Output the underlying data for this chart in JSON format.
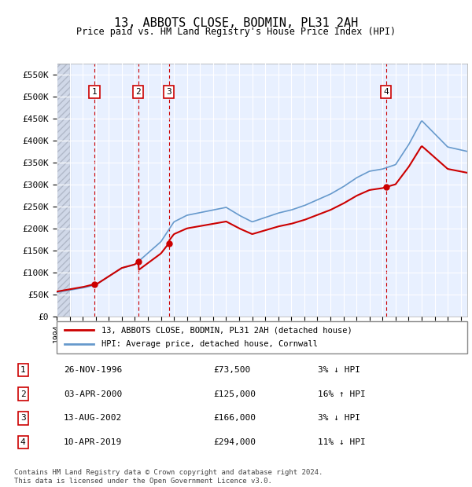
{
  "title": "13, ABBOTS CLOSE, BODMIN, PL31 2AH",
  "subtitle": "Price paid vs. HM Land Registry's House Price Index (HPI)",
  "ylabel": "",
  "ylim": [
    0,
    575000
  ],
  "yticks": [
    0,
    50000,
    100000,
    150000,
    200000,
    250000,
    300000,
    350000,
    400000,
    450000,
    500000,
    550000
  ],
  "ytick_labels": [
    "£0",
    "£50K",
    "£100K",
    "£150K",
    "£200K",
    "£250K",
    "£300K",
    "£350K",
    "£400K",
    "£450K",
    "£500K",
    "£550K"
  ],
  "xmin": 1994,
  "xmax": 2025.5,
  "transactions": [
    {
      "num": 1,
      "year": 1996.9,
      "price": 73500,
      "label": "26-NOV-1996",
      "amount": "£73,500",
      "hpi_diff": "3% ↓ HPI"
    },
    {
      "num": 2,
      "year": 2000.25,
      "price": 125000,
      "label": "03-APR-2000",
      "amount": "£125,000",
      "hpi_diff": "16% ↑ HPI"
    },
    {
      "num": 3,
      "year": 2002.6,
      "price": 166000,
      "label": "13-AUG-2002",
      "amount": "£166,000",
      "hpi_diff": "3% ↓ HPI"
    },
    {
      "num": 4,
      "year": 2019.27,
      "price": 294000,
      "label": "10-APR-2019",
      "amount": "£294,000",
      "hpi_diff": "11% ↓ HPI"
    }
  ],
  "legend_line1": "13, ABBOTS CLOSE, BODMIN, PL31 2AH (detached house)",
  "legend_line2": "HPI: Average price, detached house, Cornwall",
  "footer1": "Contains HM Land Registry data © Crown copyright and database right 2024.",
  "footer2": "This data is licensed under the Open Government Licence v3.0.",
  "bg_color": "#e8f0ff",
  "hatch_color": "#c8d0e0",
  "grid_color": "#ffffff",
  "red_line_color": "#cc0000",
  "blue_line_color": "#6699cc",
  "transaction_box_color": "#cc0000"
}
